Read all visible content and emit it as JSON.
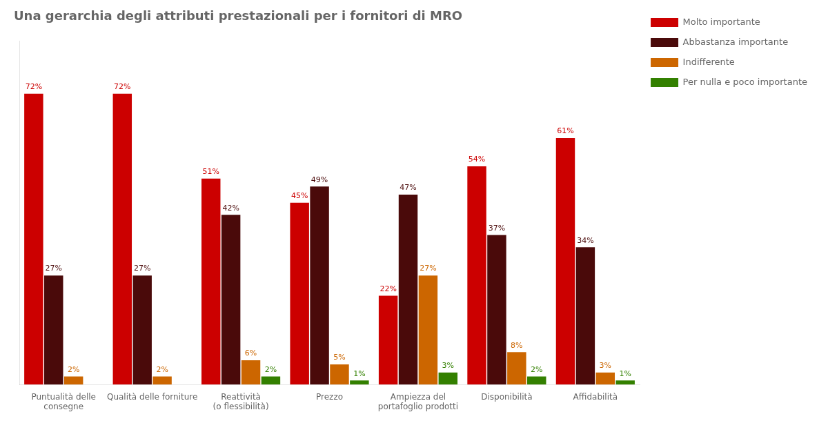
{
  "chart_data": {
    "type": "bar",
    "title": "Una gerarchia degli attributi prestazionali per i fornitori di MRO",
    "categories": [
      "Puntualità delle\nconsegne",
      "Qualità delle forniture",
      "Reattività\n(o flessibilità)",
      "Prezzo",
      "Ampiezza del\nportafoglio prodotti",
      "Disponibilità",
      "Affidabilità"
    ],
    "series": [
      {
        "name": "Molto importante",
        "color": "#cc0000",
        "values": [
          72,
          72,
          51,
          45,
          22,
          54,
          61
        ],
        "value_labels": [
          "72%",
          "72%",
          "51%",
          "45%",
          "22%",
          "54%",
          "61%"
        ]
      },
      {
        "name": "Abbastanza importante",
        "color": "#4a0a0a",
        "values": [
          27,
          27,
          42,
          49,
          47,
          37,
          34
        ],
        "value_labels": [
          "27%",
          "27%",
          "42%",
          "49%",
          "47%",
          "37%",
          "34%"
        ]
      },
      {
        "name": "Indifferente",
        "color": "#cc6600",
        "values": [
          2,
          2,
          6,
          5,
          27,
          8,
          3
        ],
        "value_labels": [
          "2%",
          "2%",
          "6%",
          "5%",
          "27%",
          "8%",
          "3%"
        ]
      },
      {
        "name": "Per nulla e poco importante",
        "color": "#338000",
        "values": [
          0,
          0,
          2,
          1,
          3,
          2,
          1
        ],
        "value_labels": [
          null,
          null,
          "2%",
          "1%",
          "3%",
          "2%",
          "1%"
        ]
      }
    ],
    "ylim": [
      0,
      85
    ],
    "grid": false,
    "legend": "right",
    "data_labels": true,
    "tick_labels": "x"
  }
}
